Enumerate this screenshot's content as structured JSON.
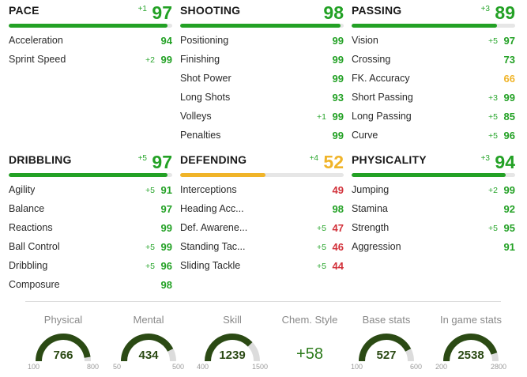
{
  "colors": {
    "green": "#23a125",
    "yellow": "#f0b429",
    "red": "#d2313a",
    "gauge_dark": "#2b4a14",
    "gauge_track": "#dcdcdc"
  },
  "categories": {
    "pace": {
      "name": "PACE",
      "bonus": "+1",
      "value": "97",
      "level": 0.97,
      "color": "green",
      "stats": [
        {
          "label": "Acceleration",
          "bonus": "",
          "value": "94",
          "color": "green"
        },
        {
          "label": "Sprint Speed",
          "bonus": "+2",
          "value": "99",
          "color": "green"
        }
      ]
    },
    "shooting": {
      "name": "SHOOTING",
      "bonus": "",
      "value": "98",
      "level": 0.98,
      "color": "green",
      "stats": [
        {
          "label": "Positioning",
          "bonus": "",
          "value": "99",
          "color": "green"
        },
        {
          "label": "Finishing",
          "bonus": "",
          "value": "99",
          "color": "green"
        },
        {
          "label": "Shot Power",
          "bonus": "",
          "value": "99",
          "color": "green"
        },
        {
          "label": "Long Shots",
          "bonus": "",
          "value": "93",
          "color": "green"
        },
        {
          "label": "Volleys",
          "bonus": "+1",
          "value": "99",
          "color": "green"
        },
        {
          "label": "Penalties",
          "bonus": "",
          "value": "99",
          "color": "green"
        }
      ]
    },
    "passing": {
      "name": "PASSING",
      "bonus": "+3",
      "value": "89",
      "level": 0.89,
      "color": "green",
      "stats": [
        {
          "label": "Vision",
          "bonus": "+5",
          "value": "97",
          "color": "green"
        },
        {
          "label": "Crossing",
          "bonus": "",
          "value": "73",
          "color": "green"
        },
        {
          "label": "FK. Accuracy",
          "bonus": "",
          "value": "66",
          "color": "yellow"
        },
        {
          "label": "Short Passing",
          "bonus": "+3",
          "value": "99",
          "color": "green"
        },
        {
          "label": "Long Passing",
          "bonus": "+5",
          "value": "85",
          "color": "green"
        },
        {
          "label": "Curve",
          "bonus": "+5",
          "value": "96",
          "color": "green"
        }
      ]
    },
    "dribbling": {
      "name": "DRIBBLING",
      "bonus": "+5",
      "value": "97",
      "level": 0.97,
      "color": "green",
      "stats": [
        {
          "label": "Agility",
          "bonus": "+5",
          "value": "91",
          "color": "green"
        },
        {
          "label": "Balance",
          "bonus": "",
          "value": "97",
          "color": "green"
        },
        {
          "label": "Reactions",
          "bonus": "",
          "value": "99",
          "color": "green"
        },
        {
          "label": "Ball Control",
          "bonus": "+5",
          "value": "99",
          "color": "green"
        },
        {
          "label": "Dribbling",
          "bonus": "+5",
          "value": "96",
          "color": "green"
        },
        {
          "label": "Composure",
          "bonus": "",
          "value": "98",
          "color": "green"
        }
      ]
    },
    "defending": {
      "name": "DEFENDING",
      "bonus": "+4",
      "value": "52",
      "level": 0.52,
      "color": "yellow",
      "stats": [
        {
          "label": "Interceptions",
          "bonus": "",
          "value": "49",
          "color": "red"
        },
        {
          "label": "Heading Acc...",
          "bonus": "",
          "value": "98",
          "color": "green"
        },
        {
          "label": "Def. Awarene...",
          "bonus": "+5",
          "value": "47",
          "color": "red"
        },
        {
          "label": "Standing Tac...",
          "bonus": "+5",
          "value": "46",
          "color": "red"
        },
        {
          "label": "Sliding Tackle",
          "bonus": "+5",
          "value": "44",
          "color": "red"
        }
      ]
    },
    "physicality": {
      "name": "PHYSICALITY",
      "bonus": "+3",
      "value": "94",
      "level": 0.94,
      "color": "green",
      "stats": [
        {
          "label": "Jumping",
          "bonus": "+2",
          "value": "99",
          "color": "green"
        },
        {
          "label": "Stamina",
          "bonus": "",
          "value": "92",
          "color": "green"
        },
        {
          "label": "Strength",
          "bonus": "+5",
          "value": "95",
          "color": "green"
        },
        {
          "label": "Aggression",
          "bonus": "",
          "value": "91",
          "color": "green"
        }
      ]
    }
  },
  "summary": {
    "physical": {
      "title": "Physical",
      "value": "766",
      "min": "100",
      "max": "800",
      "level": 0.95
    },
    "mental": {
      "title": "Mental",
      "value": "434",
      "min": "50",
      "max": "500",
      "level": 0.85
    },
    "skill": {
      "title": "Skill",
      "value": "1239",
      "min": "400",
      "max": "1500",
      "level": 0.76
    },
    "chem": {
      "title": "Chem. Style",
      "value": "+58"
    },
    "base": {
      "title": "Base stats",
      "value": "527",
      "min": "100",
      "max": "600",
      "level": 0.85
    },
    "ingame": {
      "title": "In game stats",
      "value": "2538",
      "min": "200",
      "max": "2800",
      "level": 0.9
    }
  }
}
